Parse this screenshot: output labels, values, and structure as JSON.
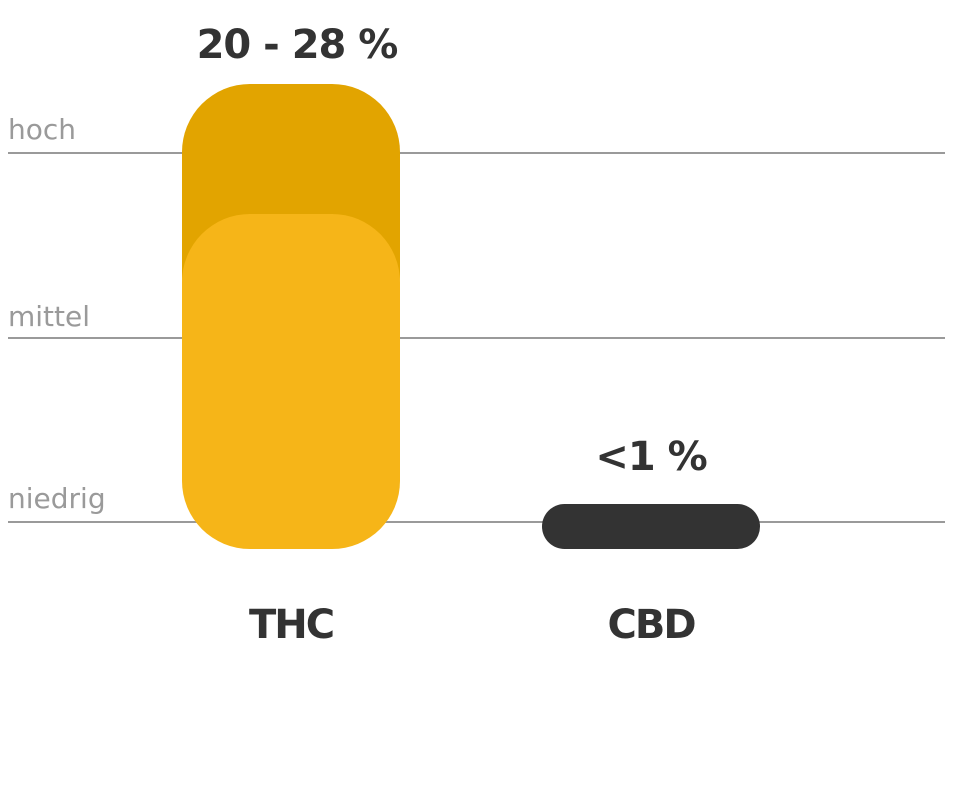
{
  "levels": [
    "hoch",
    "mittel",
    "niedrig"
  ],
  "bars": [
    {
      "name": "THC",
      "label": "20 - 28 %"
    },
    {
      "name": "CBD",
      "label": "<1 %"
    }
  ]
}
